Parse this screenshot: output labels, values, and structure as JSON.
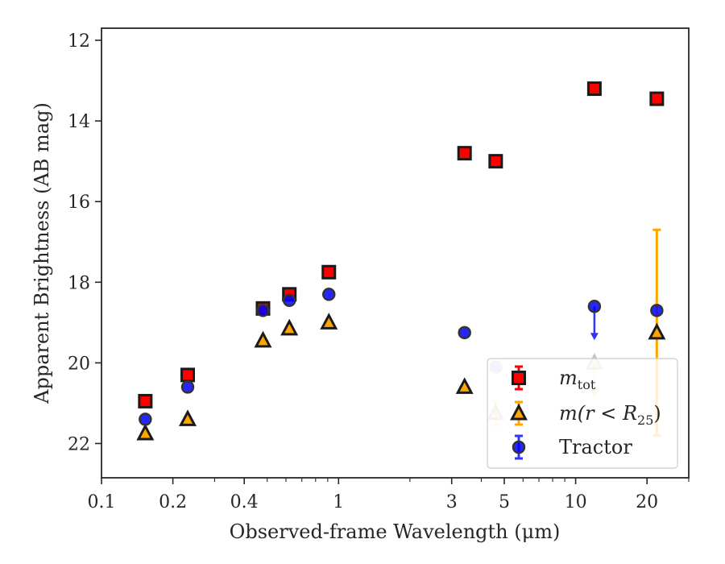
{
  "chart_data": {
    "type": "scatter",
    "xlabel": "Observed-frame Wavelength (μm)",
    "ylabel": "Apparent Brightness (AB mag)",
    "x_scale": "log",
    "xlim": [
      0.1,
      30
    ],
    "ylim": [
      22.85,
      11.7
    ],
    "y_inverted": true,
    "grid": false,
    "legend_position": "lower-right",
    "x_ticks": [
      {
        "value": 0.1,
        "label": "0.1"
      },
      {
        "value": 0.2,
        "label": "0.2"
      },
      {
        "value": 0.4,
        "label": "0.4"
      },
      {
        "value": 1,
        "label": "1"
      },
      {
        "value": 3,
        "label": "3"
      },
      {
        "value": 5,
        "label": "5"
      },
      {
        "value": 10,
        "label": "10"
      },
      {
        "value": 20,
        "label": "20"
      }
    ],
    "y_ticks": [
      {
        "value": 12,
        "label": "12"
      },
      {
        "value": 14,
        "label": "14"
      },
      {
        "value": 16,
        "label": "16"
      },
      {
        "value": 18,
        "label": "18"
      },
      {
        "value": 20,
        "label": "20"
      },
      {
        "value": 22,
        "label": "22"
      }
    ],
    "series": [
      {
        "name_main": "m",
        "name_sub": "tot",
        "marker": "square",
        "color": "#ff0000",
        "edge_color": "#1a1a1a",
        "points": [
          {
            "x": 0.153,
            "y": 20.95
          },
          {
            "x": 0.231,
            "y": 20.3
          },
          {
            "x": 0.48,
            "y": 18.65
          },
          {
            "x": 0.62,
            "y": 18.3
          },
          {
            "x": 0.91,
            "y": 17.75
          },
          {
            "x": 3.4,
            "y": 14.8
          },
          {
            "x": 4.6,
            "y": 15.0
          },
          {
            "x": 12,
            "y": 13.2
          },
          {
            "x": 22,
            "y": 13.45
          }
        ]
      },
      {
        "name_main": "m(r < R",
        "name_sub": "25",
        "name_tail": ")",
        "marker": "triangle",
        "color": "#ffa500",
        "edge_color": "#1a1a1a",
        "error_color": "#ffa500",
        "points": [
          {
            "x": 0.153,
            "y": 21.75
          },
          {
            "x": 0.231,
            "y": 21.4
          },
          {
            "x": 0.48,
            "y": 19.45
          },
          {
            "x": 0.62,
            "y": 19.15
          },
          {
            "x": 0.91,
            "y": 19.0
          },
          {
            "x": 3.4,
            "y": 20.6
          },
          {
            "x": 4.6,
            "y": 21.25,
            "yerr": [
              0.3,
              0.3
            ]
          },
          {
            "x": 12,
            "y": 20.0,
            "upper_limit": true
          },
          {
            "x": 22,
            "y": 19.25,
            "yerr": [
              2.55,
              2.55
            ]
          }
        ]
      },
      {
        "name_main": "Tractor",
        "marker": "circle",
        "color": "#0000ff",
        "edge_color": "#333333",
        "error_color": "#3333ff",
        "points": [
          {
            "x": 0.153,
            "y": 21.4
          },
          {
            "x": 0.231,
            "y": 20.6
          },
          {
            "x": 0.48,
            "y": 18.7
          },
          {
            "x": 0.62,
            "y": 18.45
          },
          {
            "x": 0.91,
            "y": 18.3
          },
          {
            "x": 3.4,
            "y": 19.25
          },
          {
            "x": 4.6,
            "y": 20.1
          },
          {
            "x": 12,
            "y": 18.6,
            "upper_limit": true
          },
          {
            "x": 22,
            "y": 18.7
          }
        ]
      }
    ]
  }
}
